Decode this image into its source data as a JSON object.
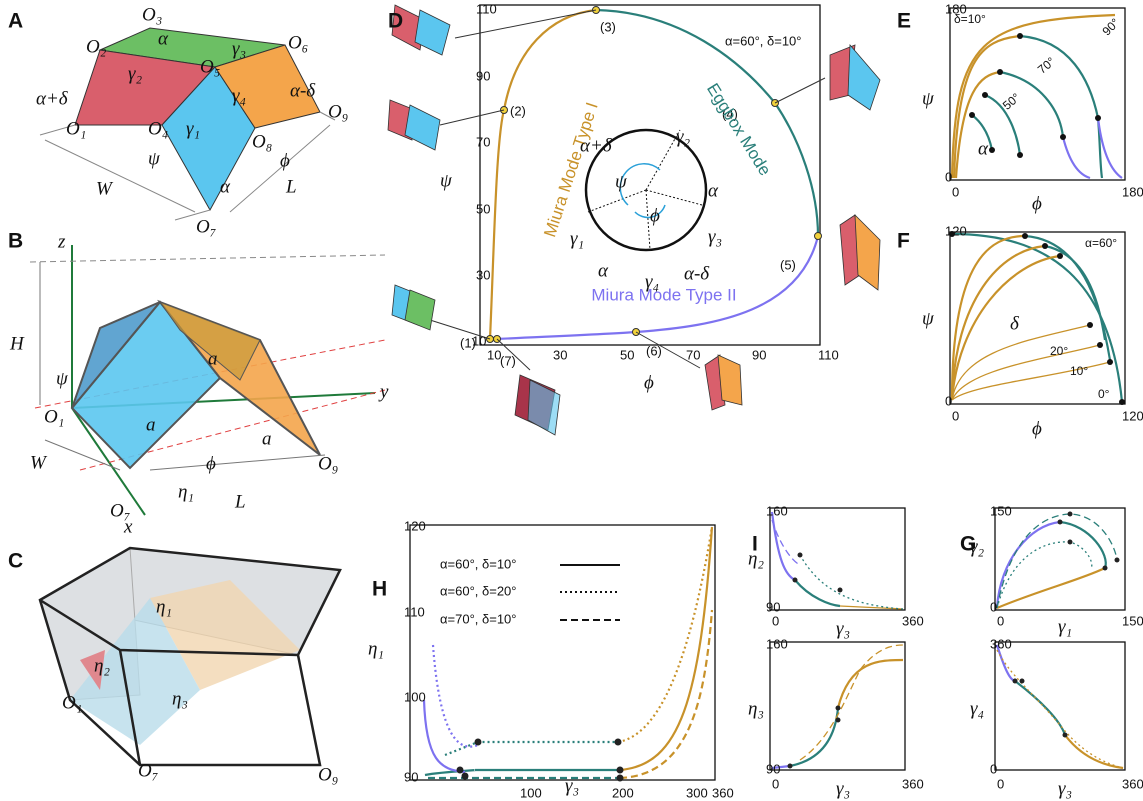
{
  "A": {
    "label": "A",
    "texts": [
      "O₃",
      "O₂",
      "O₆",
      "O₅",
      "α",
      "γ₃",
      "γ₂",
      "α+δ",
      "γ₄",
      "α-δ",
      "O₉",
      "O₁",
      "O₄",
      "γ₁",
      "O₈",
      "ψ",
      "ϕ",
      "W",
      "L",
      "α",
      "O₇"
    ]
  },
  "B": {
    "label": "B",
    "texts": [
      "z",
      "H",
      "ψ",
      "a",
      "a",
      "a",
      "y",
      "O₁",
      "ϕ",
      "O₉",
      "W",
      "O₇",
      "η₁",
      "L",
      "x"
    ]
  },
  "C": {
    "label": "C",
    "texts": [
      "η₁",
      "η₂",
      "O₁",
      "η₃",
      "O₉",
      "O₇"
    ]
  },
  "D": {
    "label": "D",
    "yticks": [
      110,
      90,
      70,
      50,
      30,
      10
    ],
    "xticks": [
      10,
      30,
      50,
      70,
      90,
      110
    ],
    "ylabel": "ψ",
    "xlabel": "ϕ",
    "annotation": "α=60°, δ=10°",
    "points": [
      "(1)",
      "(7)",
      "(2)",
      "(3)",
      "(4)",
      "(5)",
      "(6)"
    ],
    "modes": [
      "Miura Mode Type I",
      "Eggbox Mode",
      "Miura Mode Type II"
    ],
    "circle": [
      "α+δ",
      "γ₂",
      "ψ",
      "α",
      "γ₁",
      "ϕ",
      "γ₃",
      "α",
      "γ₄",
      "α-δ"
    ]
  },
  "E": {
    "label": "E",
    "yticks": [
      180,
      0
    ],
    "xticks": [
      0,
      180
    ],
    "ylabel": "ψ",
    "xlabel": "ϕ",
    "texts": [
      "δ=10°",
      "90°",
      "70°",
      "50°",
      "α"
    ]
  },
  "F": {
    "label": "F",
    "yticks": [
      120,
      0
    ],
    "xticks": [
      0,
      120
    ],
    "ylabel": "ψ",
    "xlabel": "ϕ",
    "texts": [
      "α=60°",
      "δ",
      "20°",
      "10°",
      "0°"
    ]
  },
  "H": {
    "label": "H",
    "yticks": [
      120,
      110,
      100,
      90
    ],
    "xticks": [
      100,
      200,
      300,
      360
    ],
    "ylabel": "η₁",
    "xlabel": "γ₃",
    "legend": [
      "α=60°, δ=10°",
      "α=60°, δ=20°",
      "α=70°, δ=10°"
    ]
  },
  "I": {
    "label": "I",
    "top": {
      "yticks": [
        160,
        90
      ],
      "xticks": [
        0,
        360
      ],
      "ylabel": "η₂",
      "xlabel": "γ₃"
    },
    "bottom": {
      "yticks": [
        160,
        90
      ],
      "xticks": [
        0,
        360
      ],
      "ylabel": "η₃",
      "xlabel": "γ₃"
    }
  },
  "G": {
    "label": "G",
    "top": {
      "yticks": [
        150,
        0
      ],
      "xticks": [
        0,
        150
      ],
      "ylabel": "γ₂",
      "xlabel": "γ₁"
    },
    "bottom": {
      "yticks": [
        360,
        0
      ],
      "xticks": [
        0,
        360
      ],
      "ylabel": "γ₄",
      "xlabel": "γ₃"
    }
  }
}
